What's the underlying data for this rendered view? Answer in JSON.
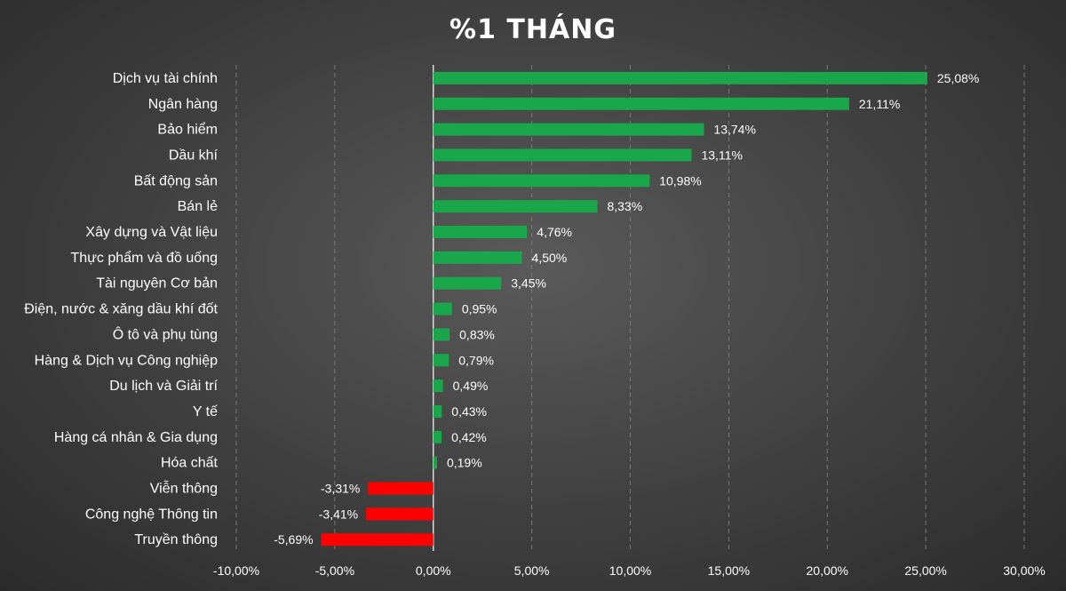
{
  "chart_data": {
    "type": "bar",
    "orientation": "horizontal",
    "title": "%1 THÁNG",
    "categories": [
      "Dịch vụ tài chính",
      "Ngân hàng",
      "Bảo hiểm",
      "Dầu khí",
      "Bất động sản",
      "Bán lẻ",
      "Xây dựng và Vật liệu",
      "Thực phẩm và đồ uống",
      "Tài nguyên Cơ bản",
      "Điện, nước & xăng dầu khí đốt",
      "Ô tô và phụ tùng",
      "Hàng & Dịch vụ Công nghiệp",
      "Du lịch và Giải trí",
      "Y tế",
      "Hàng cá nhân & Gia dụng",
      "Hóa chất",
      "Viễn thông",
      "Công nghệ Thông tin",
      "Truyền thông"
    ],
    "values": [
      25.08,
      21.11,
      13.74,
      13.11,
      10.98,
      8.33,
      4.76,
      4.5,
      3.45,
      0.95,
      0.83,
      0.79,
      0.49,
      0.43,
      0.42,
      0.19,
      -3.31,
      -3.41,
      -5.69
    ],
    "value_labels": [
      "25,08%",
      "21,11%",
      "13,74%",
      "13,11%",
      "10,98%",
      "8,33%",
      "4,76%",
      "4,50%",
      "3,45%",
      "0,95%",
      "0,83%",
      "0,79%",
      "0,49%",
      "0,43%",
      "0,42%",
      "0,19%",
      "-3,31%",
      "-3,41%",
      "-5,69%"
    ],
    "xlim": [
      -10,
      30
    ],
    "x_ticks": [
      -10,
      -5,
      0,
      5,
      10,
      15,
      20,
      25,
      30
    ],
    "x_tick_labels": [
      "-10,00%",
      "-5,00%",
      "0,00%",
      "5,00%",
      "10,00%",
      "15,00%",
      "20,00%",
      "25,00%",
      "30,00%"
    ],
    "xlabel": "",
    "ylabel": "",
    "grid": true,
    "legend": "none",
    "colors": {
      "positive": "#1aa64a",
      "negative": "#ff0000"
    }
  }
}
